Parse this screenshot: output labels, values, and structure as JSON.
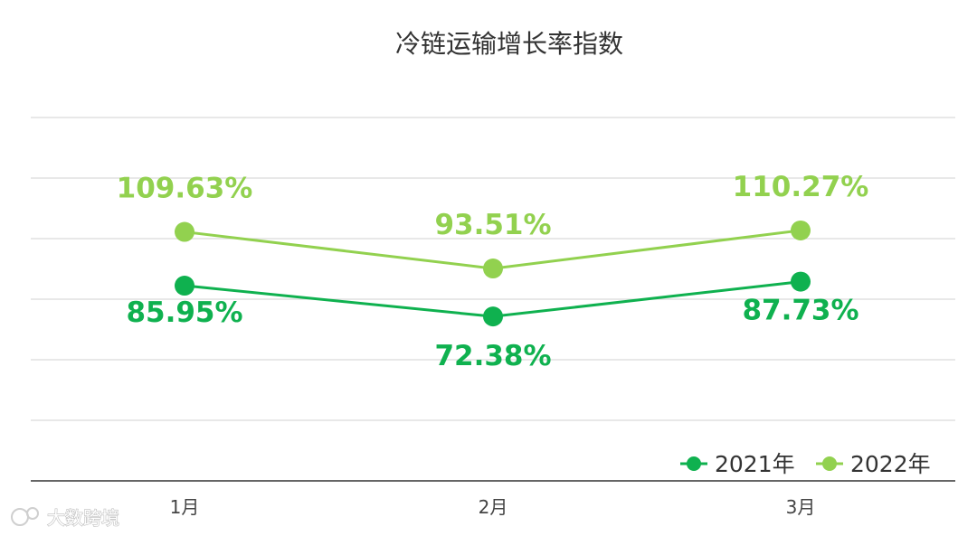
{
  "chart_data": {
    "type": "line",
    "title": "冷链运输增长率指数",
    "categories": [
      "1月",
      "2月",
      "3月"
    ],
    "series": [
      {
        "name": "2021年",
        "values": [
          85.95,
          72.38,
          87.73
        ],
        "labels": [
          "85.95%",
          "72.38%",
          "87.73%"
        ],
        "color": "#0fb14f"
      },
      {
        "name": "2022年",
        "values": [
          109.63,
          93.51,
          110.27
        ],
        "labels": [
          "109.63%",
          "93.51%",
          "110.27%"
        ],
        "color": "#92d14f"
      }
    ],
    "ylim": [
      0,
      160
    ],
    "grid": true,
    "legend": "bottom-right",
    "xlabel": "",
    "ylabel": ""
  },
  "watermark": {
    "text": "大数跨境"
  }
}
